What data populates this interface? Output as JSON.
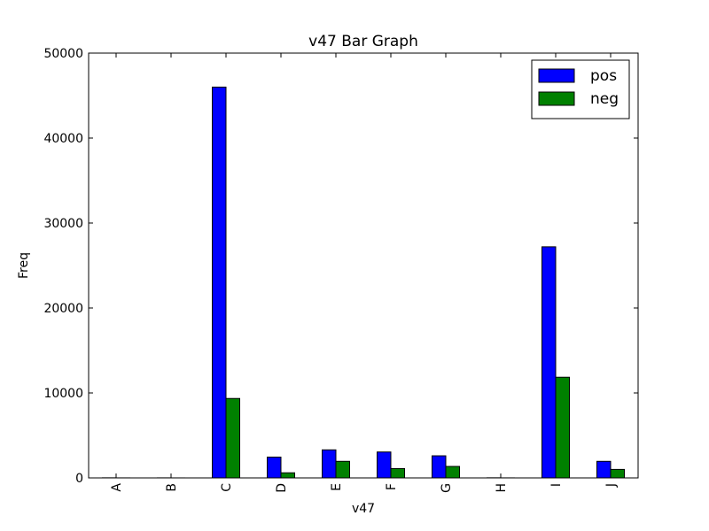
{
  "chart_data": {
    "type": "bar",
    "title": "v47 Bar Graph",
    "xlabel": "v47",
    "ylabel": "Freq",
    "categories": [
      "A",
      "B",
      "C",
      "D",
      "E",
      "F",
      "G",
      "H",
      "I",
      "J"
    ],
    "series": [
      {
        "name": "pos",
        "color": "#0000ff",
        "values": [
          12,
          8,
          46000,
          2450,
          3300,
          3050,
          2600,
          15,
          27200,
          1950
        ]
      },
      {
        "name": "neg",
        "color": "#008000",
        "values": [
          5,
          3,
          9350,
          600,
          1950,
          1100,
          1350,
          6,
          11850,
          1000
        ]
      }
    ],
    "ylim": [
      0,
      50000
    ],
    "yticks": [
      0,
      10000,
      20000,
      30000,
      40000,
      50000
    ],
    "grid": false,
    "legend_position": "top-right"
  }
}
